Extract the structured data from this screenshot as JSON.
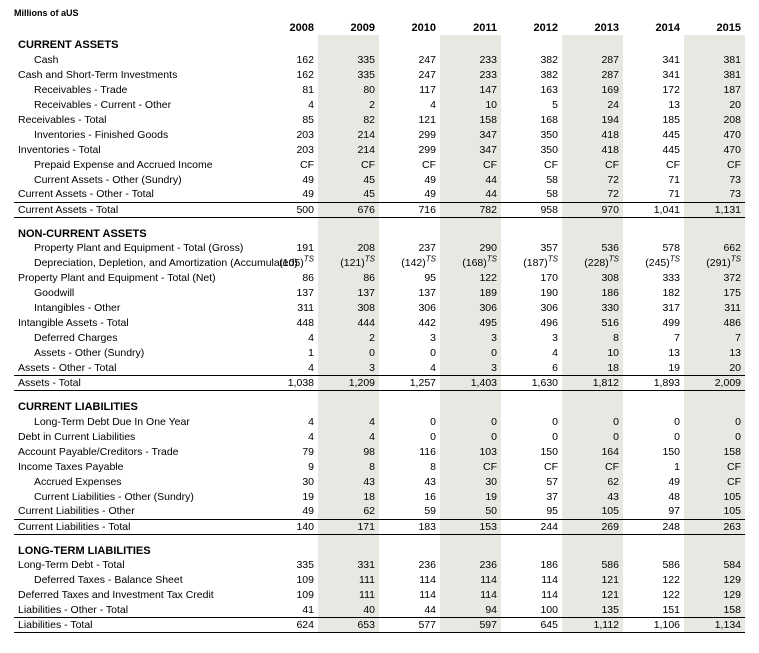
{
  "caption": "Millions of aUS",
  "years": [
    "2008",
    "2009",
    "2010",
    "2011",
    "2012",
    "2013",
    "2014",
    "2015"
  ],
  "shade_color": "#e9e7e2",
  "shaded_cols": [
    1,
    3,
    5,
    7
  ],
  "rows": [
    {
      "type": "section",
      "label": "CURRENT ASSETS",
      "first": true
    },
    {
      "indent": 1,
      "label": "Cash",
      "vals": [
        "162",
        "335",
        "247",
        "233",
        "382",
        "287",
        "341",
        "381"
      ]
    },
    {
      "indent": 0,
      "label": "Cash and Short-Term Investments",
      "vals": [
        "162",
        "335",
        "247",
        "233",
        "382",
        "287",
        "341",
        "381"
      ]
    },
    {
      "indent": 1,
      "label": "Receivables - Trade",
      "vals": [
        "81",
        "80",
        "117",
        "147",
        "163",
        "169",
        "172",
        "187"
      ]
    },
    {
      "indent": 1,
      "label": "Receivables - Current - Other",
      "vals": [
        "4",
        "2",
        "4",
        "10",
        "5",
        "24",
        "13",
        "20"
      ]
    },
    {
      "indent": 0,
      "label": "Receivables - Total",
      "vals": [
        "85",
        "82",
        "121",
        "158",
        "168",
        "194",
        "185",
        "208"
      ]
    },
    {
      "indent": 1,
      "label": "Inventories - Finished Goods",
      "vals": [
        "203",
        "214",
        "299",
        "347",
        "350",
        "418",
        "445",
        "470"
      ]
    },
    {
      "indent": 0,
      "label": "Inventories - Total",
      "vals": [
        "203",
        "214",
        "299",
        "347",
        "350",
        "418",
        "445",
        "470"
      ]
    },
    {
      "indent": 1,
      "label": "Prepaid Expense and Accrued Income",
      "vals": [
        "CF",
        "CF",
        "CF",
        "CF",
        "CF",
        "CF",
        "CF",
        "CF"
      ]
    },
    {
      "indent": 1,
      "label": "Current Assets - Other (Sundry)",
      "vals": [
        "49",
        "45",
        "49",
        "44",
        "58",
        "72",
        "71",
        "73"
      ]
    },
    {
      "indent": 0,
      "label": "Current Assets - Other - Total",
      "underlineBottom": true,
      "vals": [
        "49",
        "45",
        "49",
        "44",
        "58",
        "72",
        "71",
        "73"
      ]
    },
    {
      "indent": 0,
      "label": "Current Assets - Total",
      "underlineBottom": true,
      "vals": [
        "500",
        "676",
        "716",
        "782",
        "958",
        "970",
        "1,041",
        "1,131"
      ]
    },
    {
      "type": "section",
      "label": "NON-CURRENT ASSETS"
    },
    {
      "indent": 1,
      "label": "Property Plant and Equipment - Total (Gross)",
      "vals": [
        "191",
        "208",
        "237",
        "290",
        "357",
        "536",
        "578",
        "662"
      ]
    },
    {
      "indent": 1,
      "label": "Depreciation, Depletion, and Amortization (Accumulated)",
      "vals": [
        "(105)<span class='sup'>TS</span>",
        "(121)<span class='sup'>TS</span>",
        "(142)<span class='sup'>TS</span>",
        "(168)<span class='sup'>TS</span>",
        "(187)<span class='sup'>TS</span>",
        "(228)<span class='sup'>TS</span>",
        "(245)<span class='sup'>TS</span>",
        "(291)<span class='sup'>TS</span>"
      ]
    },
    {
      "indent": 0,
      "label": "Property Plant and Equipment - Total (Net)",
      "vals": [
        "86",
        "86",
        "95",
        "122",
        "170",
        "308",
        "333",
        "372"
      ]
    },
    {
      "indent": 1,
      "label": "Goodwill",
      "vals": [
        "137",
        "137",
        "137",
        "189",
        "190",
        "186",
        "182",
        "175"
      ]
    },
    {
      "indent": 1,
      "label": "Intangibles - Other",
      "vals": [
        "311",
        "308",
        "306",
        "306",
        "306",
        "330",
        "317",
        "311"
      ]
    },
    {
      "indent": 0,
      "label": "Intangible Assets - Total",
      "vals": [
        "448",
        "444",
        "442",
        "495",
        "496",
        "516",
        "499",
        "486"
      ]
    },
    {
      "indent": 1,
      "label": "Deferred Charges",
      "vals": [
        "4",
        "2",
        "3",
        "3",
        "3",
        "8",
        "7",
        "7"
      ]
    },
    {
      "indent": 1,
      "label": "Assets - Other (Sundry)",
      "vals": [
        "1",
        "0",
        "0",
        "0",
        "4",
        "10",
        "13",
        "13"
      ]
    },
    {
      "indent": 0,
      "label": "Assets - Other - Total",
      "underlineBottom": true,
      "vals": [
        "4",
        "3",
        "4",
        "3",
        "6",
        "18",
        "19",
        "20"
      ]
    },
    {
      "indent": 0,
      "label": "Assets - Total",
      "underlineBottom": true,
      "vals": [
        "1,038",
        "1,209",
        "1,257",
        "1,403",
        "1,630",
        "1,812",
        "1,893",
        "2,009"
      ]
    },
    {
      "type": "section",
      "label": "CURRENT LIABILITIES"
    },
    {
      "indent": 1,
      "label": "Long-Term Debt Due In One Year",
      "vals": [
        "4",
        "4",
        "0",
        "0",
        "0",
        "0",
        "0",
        "0"
      ]
    },
    {
      "indent": 0,
      "label": "Debt in Current Liabilities",
      "vals": [
        "4",
        "4",
        "0",
        "0",
        "0",
        "0",
        "0",
        "0"
      ]
    },
    {
      "indent": 0,
      "label": "Account Payable/Creditors - Trade",
      "vals": [
        "79",
        "98",
        "116",
        "103",
        "150",
        "164",
        "150",
        "158"
      ]
    },
    {
      "indent": 0,
      "label": "Income Taxes Payable",
      "vals": [
        "9",
        "8",
        "8",
        "CF",
        "CF",
        "CF",
        "1",
        "CF"
      ]
    },
    {
      "indent": 1,
      "label": "Accrued Expenses",
      "vals": [
        "30",
        "43",
        "43",
        "30",
        "57",
        "62",
        "49",
        "CF"
      ]
    },
    {
      "indent": 1,
      "label": "Current Liabilities - Other (Sundry)",
      "vals": [
        "19",
        "18",
        "16",
        "19",
        "37",
        "43",
        "48",
        "105"
      ]
    },
    {
      "indent": 0,
      "label": "Current Liabilities - Other",
      "underlineBottom": true,
      "vals": [
        "49",
        "62",
        "59",
        "50",
        "95",
        "105",
        "97",
        "105"
      ]
    },
    {
      "indent": 0,
      "label": "Current Liabilities - Total",
      "underlineBottom": true,
      "vals": [
        "140",
        "171",
        "183",
        "153",
        "244",
        "269",
        "248",
        "263"
      ]
    },
    {
      "type": "section",
      "label": "LONG-TERM LIABILITIES"
    },
    {
      "indent": 0,
      "label": "Long-Term Debt - Total",
      "vals": [
        "335",
        "331",
        "236",
        "236",
        "186",
        "586",
        "586",
        "584"
      ]
    },
    {
      "indent": 1,
      "label": "Deferred Taxes - Balance Sheet",
      "vals": [
        "109",
        "111",
        "114",
        "114",
        "114",
        "121",
        "122",
        "129"
      ]
    },
    {
      "indent": 0,
      "label": "Deferred Taxes and Investment Tax Credit",
      "vals": [
        "109",
        "111",
        "114",
        "114",
        "114",
        "121",
        "122",
        "129"
      ]
    },
    {
      "indent": 0,
      "label": "Liabilities - Other - Total",
      "underlineBottom": true,
      "vals": [
        "41",
        "40",
        "44",
        "94",
        "100",
        "135",
        "151",
        "158"
      ]
    },
    {
      "indent": 0,
      "label": "Liabilities - Total",
      "underlineBottom": true,
      "vals": [
        "624",
        "653",
        "577",
        "597",
        "645",
        "1,112",
        "1,106",
        "1,134"
      ]
    }
  ]
}
